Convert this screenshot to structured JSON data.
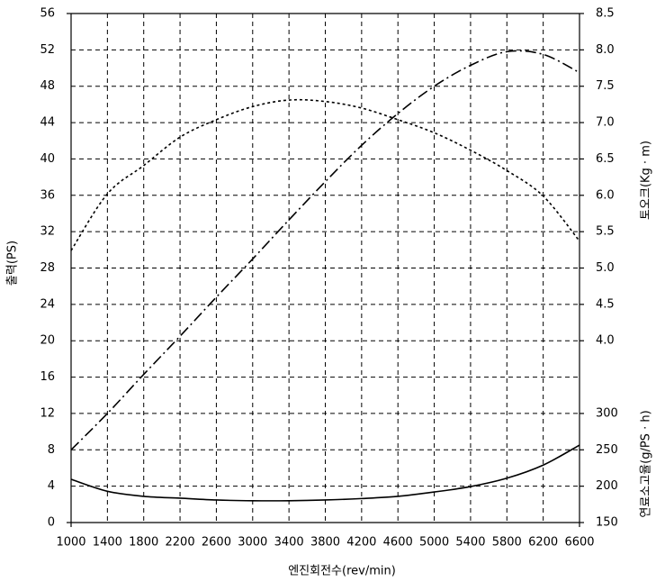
{
  "chart_data": {
    "type": "line",
    "x_label": "엔진회전수(rev/min)",
    "y_label": "출력(PS)",
    "y2_label": "토오크(Kg · m)",
    "y3_label": "연료소고율(g/PS · h)",
    "x": [
      1000,
      1400,
      1800,
      2200,
      2600,
      3000,
      3400,
      3800,
      4200,
      4600,
      5000,
      5400,
      5800,
      6200,
      6600
    ],
    "xlim": [
      1000,
      6600
    ],
    "xticks": [
      1000,
      1400,
      1800,
      2200,
      2600,
      3000,
      3400,
      3800,
      4200,
      4600,
      5000,
      5400,
      5800,
      6200,
      6600
    ],
    "ylim": [
      0,
      56
    ],
    "yticks": [
      0,
      4,
      8,
      12,
      16,
      20,
      24,
      28,
      32,
      36,
      40,
      44,
      48,
      52,
      56
    ],
    "y2lim": [
      1.5,
      8.5
    ],
    "y2ticks": [
      {
        "value": 4,
        "label": "4.0"
      },
      4.5,
      {
        "value": 5,
        "label": "5.0"
      },
      5.5,
      {
        "value": 6,
        "label": "6.0"
      },
      6.5,
      {
        "value": 7,
        "label": "7.0"
      },
      7.5,
      {
        "value": 8,
        "label": "8.0"
      },
      8.5
    ],
    "y3lim": [
      150,
      850
    ],
    "y3ticks": [
      150,
      200,
      250,
      300
    ],
    "grid": true,
    "series": [
      {
        "axis": "y",
        "color": "#000000",
        "line_style": "dashdot",
        "values": [
          8,
          12,
          16.3,
          20.5,
          24.8,
          29,
          33.3,
          37.5,
          41.5,
          45,
          48,
          50.3,
          51.8,
          51.5,
          49.5
        ]
      },
      {
        "axis": "y2",
        "color": "#000000",
        "line_style": "dotted",
        "values": [
          5.24,
          6.02,
          6.41,
          6.8,
          7.04,
          7.22,
          7.31,
          7.29,
          7.2,
          7.04,
          6.86,
          6.62,
          6.34,
          5.99,
          5.37
        ]
      },
      {
        "axis": "y3",
        "color": "#000000",
        "line_style": "solid",
        "values": [
          209.5,
          193,
          186,
          183.5,
          181,
          180,
          180,
          181,
          183,
          186,
          192,
          199.5,
          211,
          229,
          256.5
        ]
      }
    ]
  }
}
